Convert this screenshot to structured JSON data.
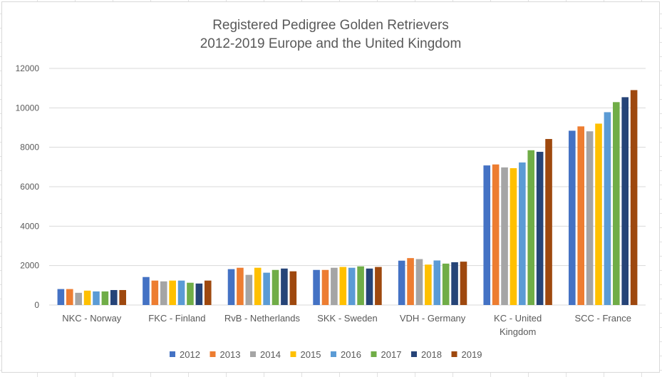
{
  "chart_data": {
    "type": "bar",
    "title": [
      "Registered Pedigree Golden Retrievers",
      "2012-2019 Europe and the United Kingdom"
    ],
    "categories": [
      [
        "NKC - Norway"
      ],
      [
        "FKC - Finland"
      ],
      [
        "RvB - Netherlands"
      ],
      [
        "SKK - Sweden"
      ],
      [
        "VDH - Germany"
      ],
      [
        "KC - United",
        "Kingdom"
      ],
      [
        "SCC - France"
      ]
    ],
    "ylim": [
      0,
      12000
    ],
    "yticks": [
      0,
      2000,
      4000,
      6000,
      8000,
      10000,
      12000
    ],
    "grid": true,
    "legend": "bottom",
    "series": [
      {
        "name": "2012",
        "color": "#4472C4",
        "values": [
          810,
          1420,
          1820,
          1780,
          2250,
          7080,
          8840
        ]
      },
      {
        "name": "2013",
        "color": "#ED7D31",
        "values": [
          810,
          1240,
          1890,
          1780,
          2380,
          7130,
          9060
        ]
      },
      {
        "name": "2014",
        "color": "#A5A5A5",
        "values": [
          620,
          1200,
          1530,
          1890,
          2330,
          6980,
          8810
        ]
      },
      {
        "name": "2015",
        "color": "#FFC000",
        "values": [
          730,
          1240,
          1890,
          1930,
          2050,
          6940,
          9200
        ]
      },
      {
        "name": "2016",
        "color": "#5B9BD5",
        "values": [
          690,
          1240,
          1640,
          1890,
          2260,
          7230,
          9780
        ]
      },
      {
        "name": "2017",
        "color": "#70AD47",
        "values": [
          690,
          1130,
          1780,
          1960,
          2100,
          7850,
          10290
        ]
      },
      {
        "name": "2018",
        "color": "#264478",
        "values": [
          760,
          1090,
          1850,
          1850,
          2170,
          7770,
          10540
        ]
      },
      {
        "name": "2019",
        "color": "#9E480E",
        "values": [
          760,
          1240,
          1710,
          1930,
          2200,
          8420,
          10900
        ]
      }
    ]
  }
}
